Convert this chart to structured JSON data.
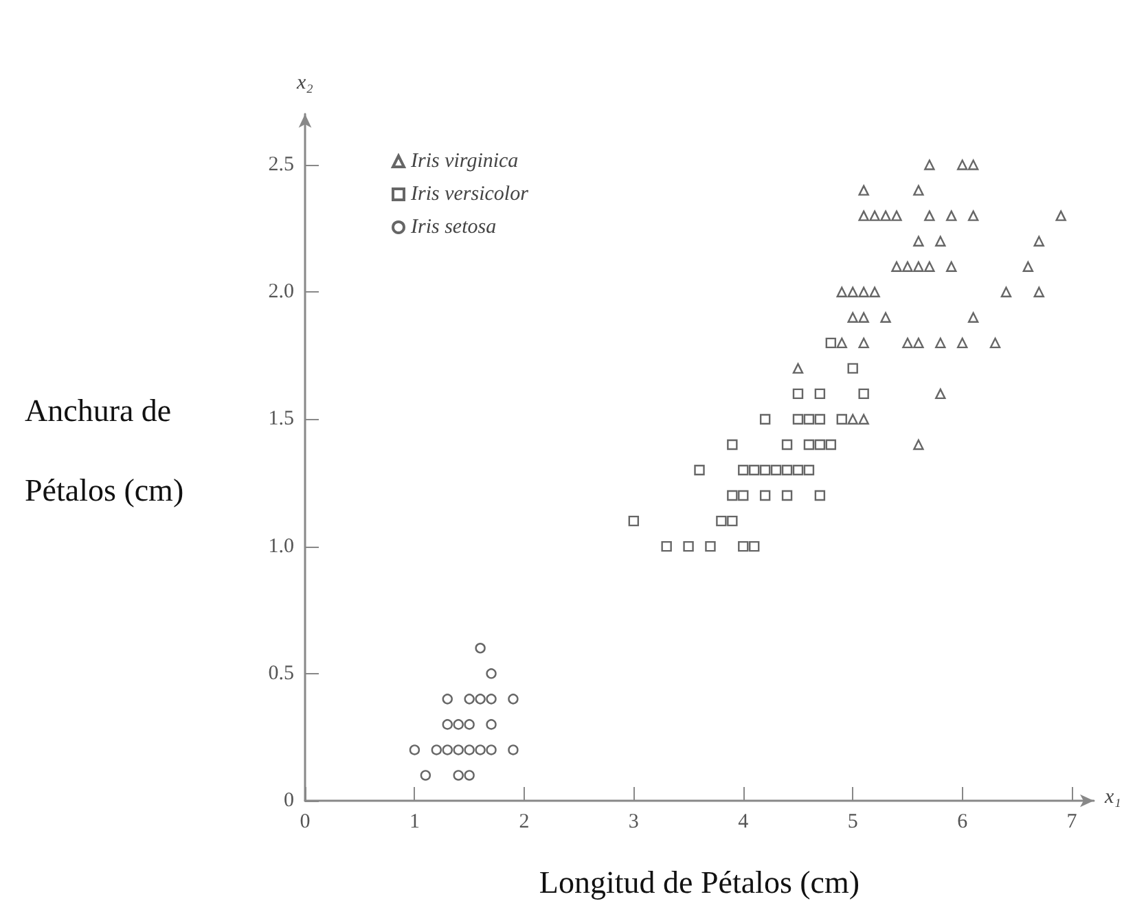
{
  "chart_data": {
    "type": "scatter",
    "xlabel": "Longitud de Pétalos (cm)",
    "ylabel": "Anchura de\nPétalos (cm)",
    "annotations": [
      "x₁",
      "x₂"
    ],
    "xlim": [
      0,
      7.2
    ],
    "xticks": [
      0,
      1,
      2,
      3,
      4,
      5,
      6,
      7
    ],
    "ylim": [
      0,
      2.7
    ],
    "yticks": [
      0,
      {
        "value": 0.5,
        "label": "0.5"
      },
      {
        "value": 1,
        "label": "1.0"
      },
      {
        "value": 1.5,
        "label": "1.5"
      },
      {
        "value": 2,
        "label": "2.0"
      },
      {
        "value": 2.5,
        "label": "2.5"
      }
    ],
    "grid": false,
    "legend": "top left",
    "series": [
      {
        "name": "Iris virginica",
        "color": "#666666",
        "marker": "triangle",
        "x": [
          6.0,
          5.1,
          5.9,
          5.6,
          5.8,
          6.6,
          4.5,
          6.3,
          5.8,
          6.1,
          5.1,
          5.3,
          5.5,
          5.0,
          5.1,
          5.3,
          5.5,
          6.7,
          6.9,
          5.0,
          5.7,
          4.9,
          6.7,
          4.9,
          5.7,
          6.0,
          5.6,
          5.8,
          6.1,
          6.4,
          5.6,
          5.1,
          5.6,
          6.1,
          5.6,
          5.4,
          5.1,
          5.9,
          5.7,
          5.2,
          5.0,
          5.2,
          5.4,
          5.1
        ],
        "values": [
          2.5,
          1.9,
          2.1,
          1.8,
          2.2,
          2.1,
          1.7,
          1.8,
          1.8,
          2.5,
          2.0,
          1.9,
          2.1,
          2.0,
          2.4,
          2.3,
          1.8,
          2.2,
          2.3,
          1.5,
          2.3,
          2.0,
          2.0,
          1.8,
          2.1,
          1.8,
          2.1,
          1.6,
          1.9,
          2.0,
          2.2,
          1.5,
          1.4,
          2.3,
          2.4,
          2.1,
          2.3,
          2.3,
          2.5,
          2.3,
          1.9,
          2.0,
          2.3,
          1.8
        ]
      },
      {
        "name": "Iris versicolor",
        "color": "#666666",
        "marker": "square",
        "x": [
          4.7,
          4.5,
          4.9,
          4.0,
          4.6,
          4.5,
          4.7,
          3.3,
          4.6,
          3.9,
          3.5,
          4.2,
          4.0,
          3.6,
          4.4,
          4.1,
          3.9,
          4.8,
          4.7,
          4.3,
          4.8,
          5.0,
          3.8,
          3.7,
          3.9,
          5.1,
          4.5,
          4.7,
          4.4,
          4.1,
          4.4,
          4.6,
          4.0,
          4.2,
          4.2,
          3.0
        ],
        "values": [
          1.4,
          1.5,
          1.5,
          1.3,
          1.5,
          1.3,
          1.6,
          1.0,
          1.3,
          1.4,
          1.0,
          1.5,
          1.0,
          1.3,
          1.4,
          1.0,
          1.1,
          1.8,
          1.2,
          1.3,
          1.4,
          1.7,
          1.1,
          1.0,
          1.2,
          1.6,
          1.6,
          1.5,
          1.3,
          1.3,
          1.2,
          1.4,
          1.2,
          1.3,
          1.2,
          1.1
        ]
      },
      {
        "name": "Iris setosa",
        "color": "#666666",
        "marker": "circle",
        "x": [
          1.4,
          1.3,
          1.5,
          1.7,
          1.4,
          1.5,
          1.6,
          1.4,
          1.1,
          1.2,
          1.5,
          1.3,
          1.7,
          1.5,
          1.7,
          1.0,
          1.7,
          1.9,
          1.6,
          1.3,
          1.6,
          1.9
        ],
        "values": [
          0.2,
          0.2,
          0.2,
          0.4,
          0.3,
          0.1,
          0.2,
          0.1,
          0.1,
          0.2,
          0.4,
          0.4,
          0.3,
          0.3,
          0.2,
          0.2,
          0.5,
          0.2,
          0.4,
          0.3,
          0.6,
          0.4
        ]
      }
    ]
  }
}
